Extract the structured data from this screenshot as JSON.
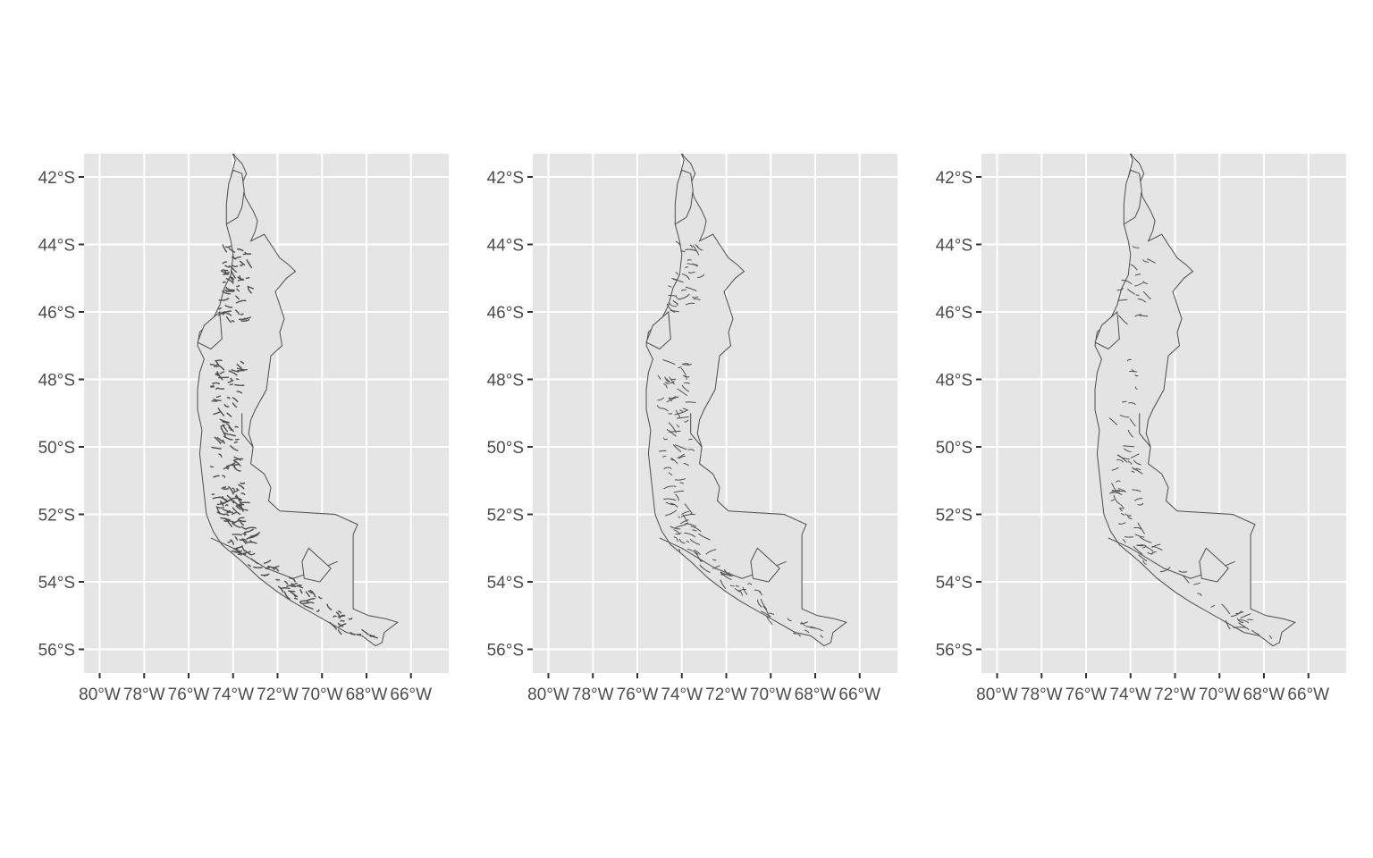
{
  "figure": {
    "panel_count": 3,
    "panel_background": "#e5e5e5",
    "grid_color": "#ffffff",
    "land_fill": "#e3e3e3",
    "outline_color": "#4d4d4d",
    "axis_text_color": "#4d4d4d"
  },
  "x_ticks": [
    "80°W",
    "78°W",
    "76°W",
    "74°W",
    "72°W",
    "70°W",
    "68°W",
    "66°W"
  ],
  "y_ticks": [
    "42°S",
    "44°S",
    "46°S",
    "48°S",
    "50°S",
    "52°S",
    "54°S",
    "56°S"
  ],
  "x_tick_values": [
    -80,
    -78,
    -76,
    -74,
    -72,
    -70,
    -68,
    -66
  ],
  "y_tick_values": [
    -42,
    -44,
    -46,
    -48,
    -50,
    -52,
    -54,
    -56
  ],
  "panels": [
    {
      "detail": "high"
    },
    {
      "detail": "medium"
    },
    {
      "detail": "low"
    }
  ]
}
